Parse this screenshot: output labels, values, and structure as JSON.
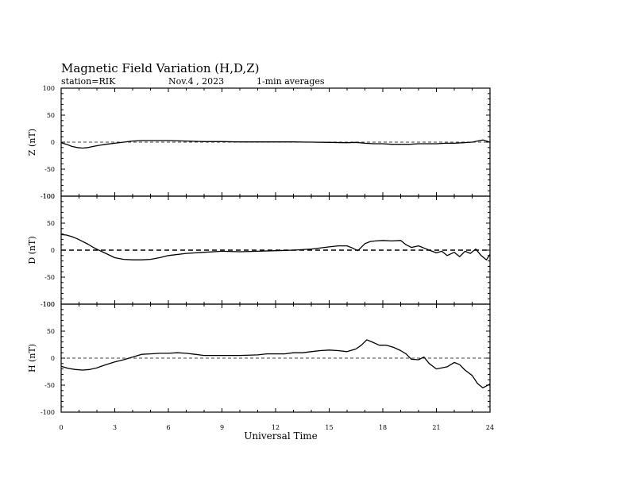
{
  "chart_data": {
    "type": "line",
    "title": "Magnetic Field Variation (H,D,Z)",
    "station": "station=RIK",
    "date": "Nov.4  , 2023",
    "averaging": "1-min averages",
    "xlabel": "Universal Time",
    "xlim": [
      0,
      24
    ],
    "x_ticks": [
      "0",
      "3",
      "6",
      "9",
      "12",
      "15",
      "18",
      "21",
      "24"
    ],
    "y_ticks": [
      "100",
      "50",
      "0",
      "-50",
      "-100"
    ],
    "panels": [
      {
        "ylabel": "Z (nT)",
        "ylim": [
          -100,
          100
        ],
        "x": [
          0,
          0.3,
          0.6,
          0.9,
          1.2,
          1.5,
          1.8,
          2.1,
          2.5,
          3,
          3.5,
          4,
          4.5,
          5,
          5.5,
          6,
          7,
          8,
          9,
          10,
          11,
          12,
          13,
          14,
          15,
          16,
          16.5,
          17,
          17.5,
          18,
          18.5,
          19,
          19.5,
          20,
          20.5,
          21,
          21.5,
          22,
          22.5,
          23,
          23.3,
          23.6,
          24
        ],
        "y": [
          -1,
          -4,
          -8,
          -10,
          -11,
          -10,
          -8,
          -6,
          -4,
          -2,
          0,
          2,
          3,
          3,
          3,
          3,
          2,
          1,
          1,
          0.5,
          0.5,
          0.5,
          0.5,
          0,
          -0.5,
          -1,
          -0.5,
          -2,
          -3,
          -3,
          -4,
          -4,
          -4,
          -3,
          -3,
          -3,
          -2,
          -2,
          -1,
          0,
          2,
          4,
          0
        ]
      },
      {
        "ylabel": "D (nT)",
        "ylim": [
          -100,
          100
        ],
        "x": [
          0,
          0.3,
          0.6,
          0.9,
          1.2,
          1.5,
          1.8,
          2.1,
          2.5,
          3,
          3.5,
          4,
          4.5,
          5,
          5.5,
          6,
          7,
          8,
          9,
          10,
          11,
          12,
          13,
          14,
          15,
          15.5,
          16,
          16.3,
          16.6,
          17,
          17.3,
          17.6,
          18,
          18.5,
          19,
          19.3,
          19.6,
          20,
          20.3,
          20.6,
          21,
          21.3,
          21.6,
          22,
          22.3,
          22.6,
          22.9,
          23.2,
          23.5,
          23.8,
          24
        ],
        "y": [
          29,
          28,
          25,
          21,
          16,
          11,
          5,
          0,
          -6,
          -14,
          -17,
          -18,
          -18,
          -17,
          -14,
          -10,
          -6,
          -4,
          -2,
          -3,
          -2,
          -1,
          0,
          2,
          6,
          8,
          8,
          4,
          -1,
          12,
          16,
          17,
          18,
          17,
          18,
          10,
          5,
          8,
          4,
          0,
          -5,
          -2,
          -10,
          -4,
          -12,
          -2,
          -6,
          2,
          -10,
          -18,
          -8
        ]
      },
      {
        "ylabel": "H (nT)",
        "ylim": [
          -100,
          100
        ],
        "x": [
          0,
          0.4,
          0.8,
          1.2,
          1.6,
          2,
          2.5,
          3,
          3.5,
          4,
          4.5,
          5,
          5.5,
          6,
          6.5,
          7,
          7.5,
          8,
          9,
          10,
          11,
          11.5,
          12,
          12.5,
          13,
          13.5,
          14,
          14.5,
          15,
          15.5,
          16,
          16.5,
          16.8,
          17.1,
          17.4,
          17.8,
          18.2,
          18.6,
          19,
          19.3,
          19.6,
          20,
          20.3,
          20.6,
          21,
          21.3,
          21.6,
          22,
          22.3,
          22.6,
          23,
          23.3,
          23.6,
          24
        ],
        "y": [
          -15,
          -19,
          -21,
          -22,
          -21,
          -18,
          -12,
          -7,
          -3,
          2,
          7,
          8,
          9,
          9,
          10,
          9,
          7,
          5,
          5,
          5,
          6,
          8,
          8,
          8,
          10,
          10,
          12,
          14,
          15,
          14,
          12,
          17,
          24,
          34,
          30,
          24,
          24,
          20,
          14,
          8,
          -2,
          -3,
          2,
          -10,
          -20,
          -18,
          -16,
          -8,
          -12,
          -22,
          -32,
          -47,
          -55,
          -48
        ]
      }
    ]
  }
}
